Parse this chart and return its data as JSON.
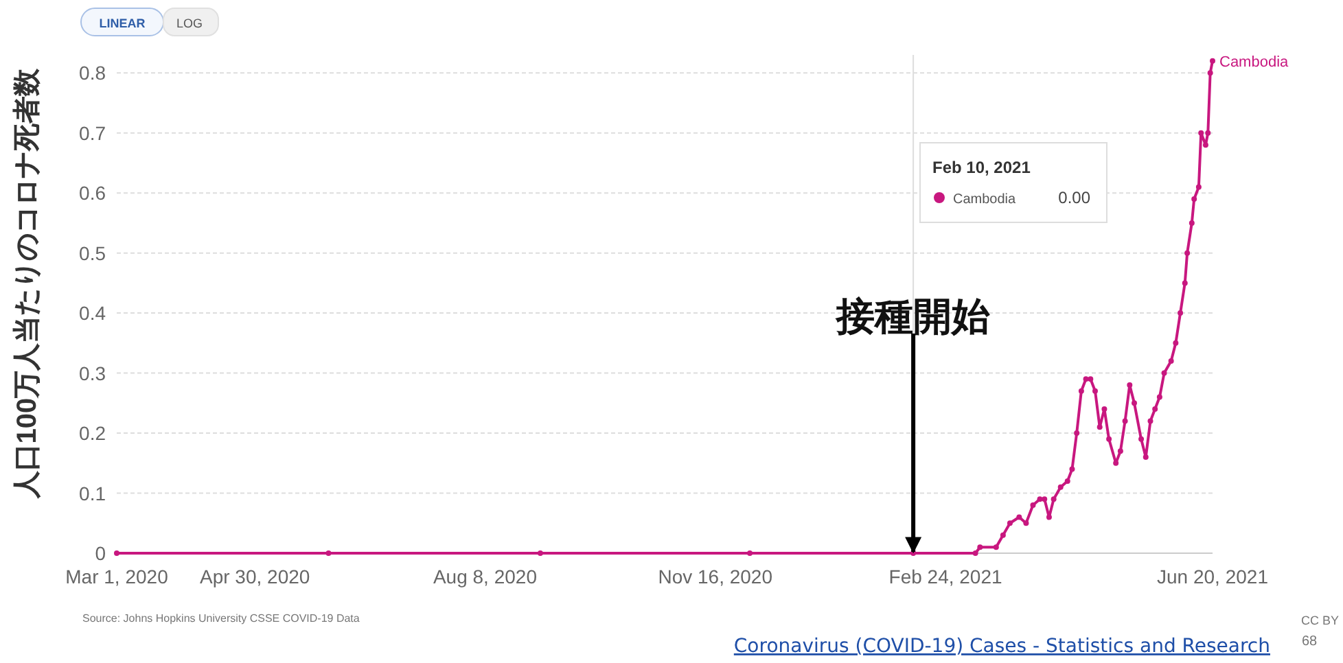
{
  "chart_data": {
    "type": "line",
    "ylabel": "人口100万人当たりのコロナ死者数",
    "x": [
      "2020-03-01",
      "2020-06-01",
      "2020-09-01",
      "2020-12-01",
      "2021-02-10",
      "2021-03-09",
      "2021-03-11",
      "2021-03-18",
      "2021-03-21",
      "2021-03-24",
      "2021-03-28",
      "2021-03-31",
      "2021-04-03",
      "2021-04-06",
      "2021-04-08",
      "2021-04-10",
      "2021-04-12",
      "2021-04-15",
      "2021-04-18",
      "2021-04-20",
      "2021-04-22",
      "2021-04-24",
      "2021-04-26",
      "2021-04-28",
      "2021-04-30",
      "2021-05-02",
      "2021-05-04",
      "2021-05-06",
      "2021-05-09",
      "2021-05-11",
      "2021-05-13",
      "2021-05-15",
      "2021-05-17",
      "2021-05-20",
      "2021-05-22",
      "2021-05-24",
      "2021-05-26",
      "2021-05-28",
      "2021-05-30",
      "2021-06-02",
      "2021-06-04",
      "2021-06-06",
      "2021-06-08",
      "2021-06-09",
      "2021-06-11",
      "2021-06-12",
      "2021-06-14",
      "2021-06-15",
      "2021-06-17",
      "2021-06-18",
      "2021-06-19",
      "2021-06-20"
    ],
    "series": [
      {
        "name": "Cambodia",
        "color": "#c8177f",
        "values": [
          0,
          0,
          0,
          0,
          0,
          0,
          0.01,
          0.01,
          0.03,
          0.05,
          0.06,
          0.05,
          0.08,
          0.09,
          0.09,
          0.06,
          0.09,
          0.11,
          0.12,
          0.14,
          0.2,
          0.27,
          0.29,
          0.29,
          0.27,
          0.21,
          0.24,
          0.19,
          0.15,
          0.17,
          0.22,
          0.28,
          0.25,
          0.19,
          0.16,
          0.22,
          0.24,
          0.26,
          0.3,
          0.32,
          0.35,
          0.4,
          0.45,
          0.5,
          0.55,
          0.59,
          0.61,
          0.7,
          0.68,
          0.7,
          0.8,
          0.82
        ]
      }
    ],
    "xlim": [
      "2020-03-01",
      "2021-06-20"
    ],
    "xticks": [
      {
        "value": "2020-03-01",
        "label": "Mar 1, 2020"
      },
      {
        "value": "2020-04-30",
        "label": "Apr 30, 2020"
      },
      {
        "value": "2020-08-08",
        "label": "Aug 8, 2020"
      },
      {
        "value": "2020-11-16",
        "label": "Nov 16, 2020"
      },
      {
        "value": "2021-02-24",
        "label": "Feb 24, 2021"
      },
      {
        "value": "2021-06-20",
        "label": "Jun 20, 2021"
      }
    ],
    "ylim": [
      0,
      0.83
    ],
    "yticks": [
      0,
      0.1,
      0.2,
      0.3,
      0.4,
      0.5,
      0.6,
      0.7,
      0.8
    ],
    "grid": "y",
    "marker": "circle",
    "line_style": "solid",
    "ref_lines": [
      {
        "axis": "x",
        "value": "2021-02-10",
        "color": "#dddddd"
      }
    ],
    "annotations": [
      {
        "text": "接種開始",
        "x": "2021-02-10",
        "y": 0
      },
      "LINEAR",
      "LOG",
      "Feb 10, 2021",
      "Cambodia",
      "0.00",
      "Source: Johns Hopkins University CSSE COVID-19 Data",
      "Coronavirus (COVID-19) Cases - Statistics and Research",
      "CC BY",
      "68"
    ]
  }
}
